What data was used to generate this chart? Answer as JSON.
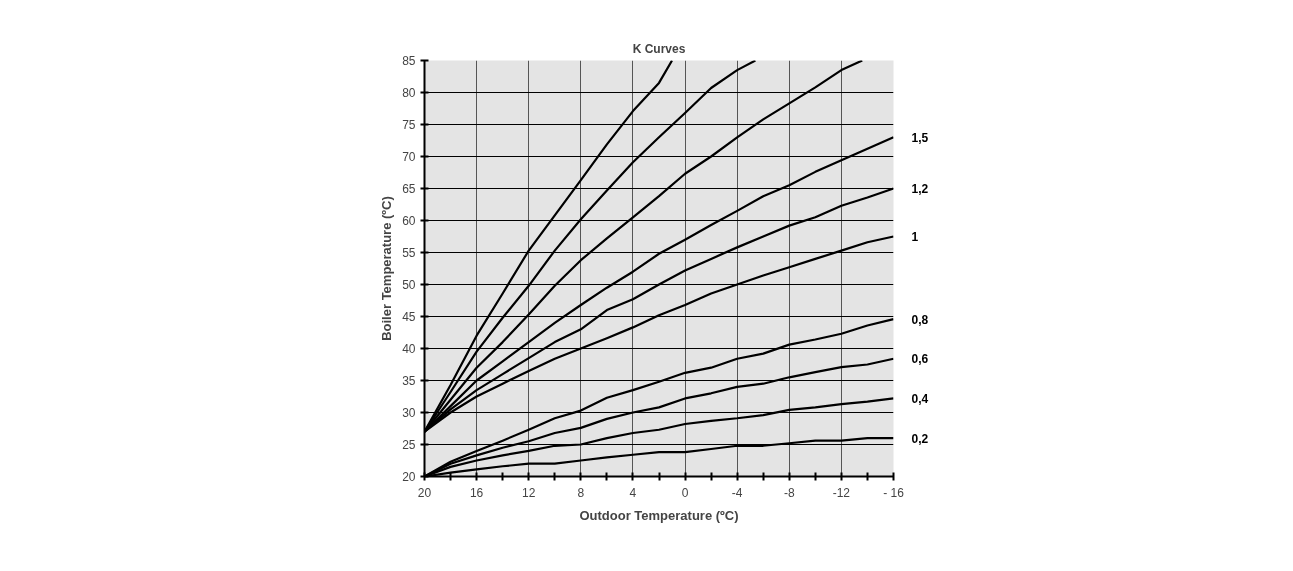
{
  "chart_data": {
    "type": "line",
    "title": "K Curves",
    "xlabel": "Outdoor Temperature (ºC)",
    "ylabel": "Boiler Temperature (ºC)",
    "x": [
      20,
      18,
      16,
      14,
      12,
      10,
      8,
      6,
      4,
      2,
      0,
      -2,
      -4,
      -6,
      -8,
      -10,
      -12,
      -14,
      -16
    ],
    "series": [
      {
        "color": "#000000",
        "x": [
          20,
          18,
          16,
          14,
          12,
          10,
          8,
          6,
          4,
          2,
          1
        ],
        "values": [
          27,
          34.3,
          42,
          48.6,
          55.3,
          60.8,
          66.3,
          71.9,
          77.1,
          81.5,
          85
        ]
      },
      {
        "color": "#000000",
        "x": [
          20,
          18,
          16,
          14,
          12,
          10,
          8,
          6,
          4,
          2,
          0,
          -2,
          -4,
          -5.4
        ],
        "values": [
          27,
          33.2,
          39.5,
          44.8,
          49.8,
          55.3,
          60.2,
          64.7,
          69.1,
          73,
          76.8,
          80.7,
          83.5,
          85
        ]
      },
      {
        "color": "#000000",
        "x": [
          20,
          18,
          16,
          14,
          12,
          10,
          8,
          6,
          4,
          2,
          0,
          -2,
          -4,
          -6,
          -8,
          -10,
          -12,
          -13.6
        ],
        "values": [
          27,
          32,
          37,
          41,
          45.3,
          49.8,
          53.8,
          57.2,
          60.5,
          63.8,
          67.3,
          70,
          73,
          75.8,
          78.3,
          80.8,
          83.5,
          85
        ]
      },
      {
        "name": "1,5",
        "color": "#000000",
        "values": [
          27,
          31,
          35,
          38,
          41,
          44,
          46.8,
          49.5,
          52,
          54.8,
          57,
          59.3,
          61.5,
          63.8,
          65.5,
          67.6,
          69.4,
          71.2,
          73
        ]
      },
      {
        "name": "1,2",
        "color": "#000000",
        "values": [
          27,
          30.5,
          33.5,
          36,
          38.5,
          41,
          43,
          46,
          47.7,
          50,
          52.2,
          54,
          55.8,
          57.5,
          59.2,
          60.5,
          62.3,
          63.6,
          65
        ]
      },
      {
        "name": "1",
        "color": "#000000",
        "values": [
          27,
          30,
          32.5,
          34.5,
          36.5,
          38.4,
          40,
          41.6,
          43.3,
          45.2,
          46.8,
          48.6,
          50,
          51.4,
          52.7,
          54,
          55.3,
          56.6,
          57.5
        ]
      },
      {
        "name": "0,8",
        "color": "#000000",
        "values": [
          20,
          22.3,
          24,
          25.6,
          27.3,
          29.1,
          30.3,
          32.3,
          33.5,
          34.8,
          36.2,
          37,
          38.4,
          39.2,
          40.6,
          41.4,
          42.3,
          43.6,
          44.6
        ]
      },
      {
        "name": "0,6",
        "color": "#000000",
        "values": [
          20,
          22,
          23.3,
          24.5,
          25.5,
          26.8,
          27.6,
          29,
          30,
          30.8,
          32.2,
          33,
          34,
          34.5,
          35.5,
          36.3,
          37.1,
          37.5,
          38.4
        ]
      },
      {
        "name": "0,4",
        "color": "#000000",
        "values": [
          20,
          21.5,
          22.5,
          23.3,
          24,
          24.8,
          25,
          26,
          26.8,
          27.3,
          28.2,
          28.7,
          29.1,
          29.6,
          30.4,
          30.8,
          31.3,
          31.7,
          32.2
        ]
      },
      {
        "name": "0,2",
        "color": "#000000",
        "values": [
          20,
          20.6,
          21.1,
          21.6,
          22,
          22,
          22.5,
          23,
          23.4,
          23.8,
          23.8,
          24.3,
          24.8,
          24.8,
          25.2,
          25.6,
          25.6,
          26,
          26
        ]
      }
    ],
    "xlim": [
      20,
      -16
    ],
    "ylim": [
      20,
      85
    ],
    "xticks": [
      20,
      {
        "value": 18,
        "label": null
      },
      16,
      {
        "value": 14,
        "label": null
      },
      12,
      {
        "value": 10,
        "label": null
      },
      8,
      {
        "value": 6,
        "label": null
      },
      4,
      {
        "value": 2,
        "label": null
      },
      0,
      {
        "value": -2,
        "label": null
      },
      -4,
      {
        "value": -6,
        "label": null
      },
      -8,
      {
        "value": -10,
        "label": null
      },
      -12,
      {
        "value": -14,
        "label": null
      },
      {
        "value": -16,
        "label": "- 16"
      }
    ],
    "yticks": [
      20,
      25,
      30,
      35,
      40,
      45,
      50,
      55,
      60,
      65,
      70,
      75,
      80,
      85
    ],
    "grid": true,
    "marker": "none",
    "line_style": "solid"
  }
}
